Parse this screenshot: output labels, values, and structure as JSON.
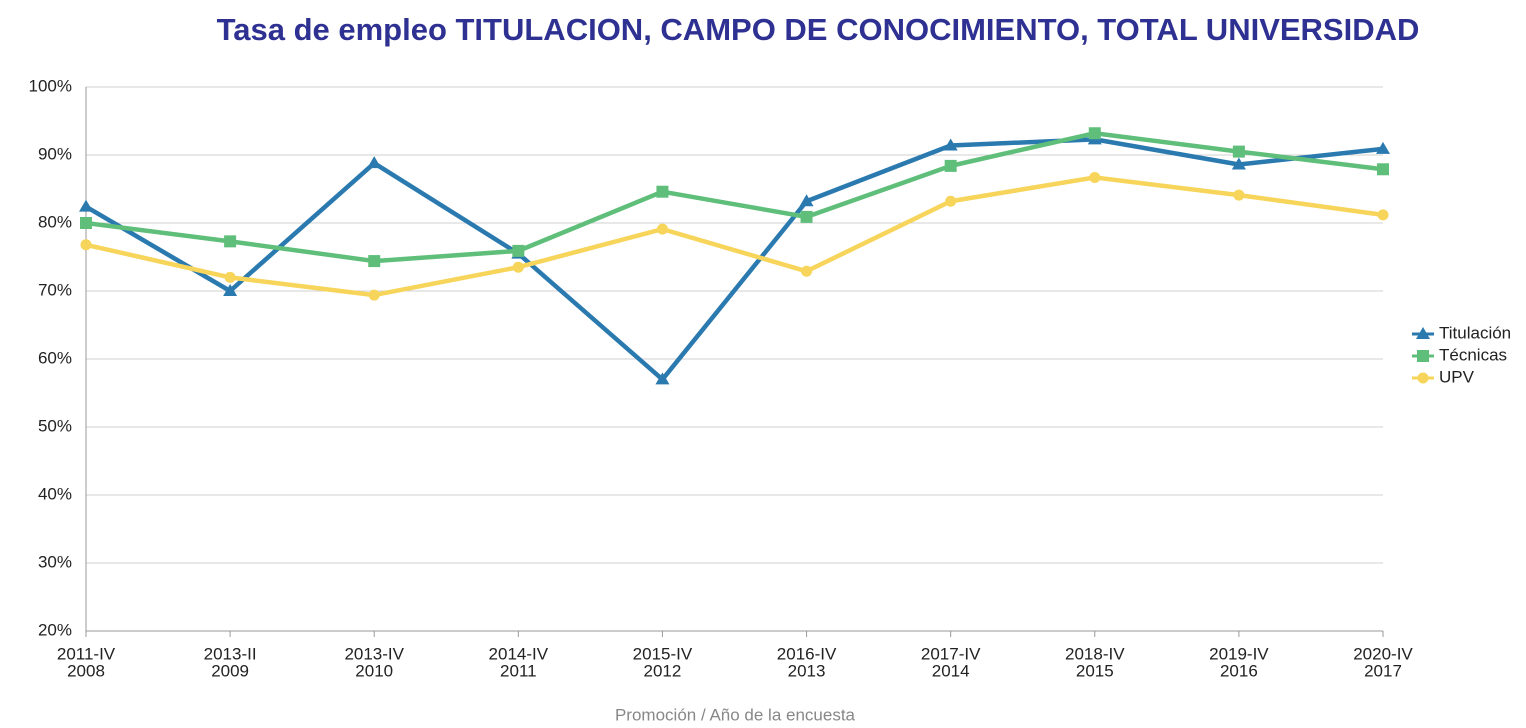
{
  "chart_data": {
    "type": "line",
    "title": "Tasa de empleo TITULACION, CAMPO DE CONOCIMIENTO, TOTAL UNIVERSIDAD",
    "x_label": "Promoción / Año de la encuesta",
    "categories": [
      [
        "2011-IV",
        "2008"
      ],
      [
        "2013-II",
        "2009"
      ],
      [
        "2013-IV",
        "2010"
      ],
      [
        "2014-IV",
        "2011"
      ],
      [
        "2015-IV",
        "2012"
      ],
      [
        "2016-IV",
        "2013"
      ],
      [
        "2017-IV",
        "2014"
      ],
      [
        "2018-IV",
        "2015"
      ],
      [
        "2019-IV",
        "2016"
      ],
      [
        "2020-IV",
        "2017"
      ]
    ],
    "series": [
      {
        "name": "Titulación",
        "color": "#2a7ab0",
        "marker": "triangle",
        "values": [
          82.4,
          70,
          88.8,
          75.5,
          57,
          83.2,
          91.4,
          92.3,
          88.6,
          90.9
        ]
      },
      {
        "name": "Técnicas",
        "color": "#5fbf7a",
        "marker": "square",
        "values": [
          80,
          77.3,
          74.4,
          75.9,
          84.6,
          80.9,
          88.4,
          93.2,
          90.5,
          87.9
        ]
      },
      {
        "name": "UPV",
        "color": "#f7d45a",
        "marker": "circle",
        "values": [
          76.8,
          72,
          69.4,
          73.5,
          79.1,
          72.9,
          83.2,
          86.7,
          84.1,
          81.2
        ]
      }
    ],
    "ylim": [
      20,
      100
    ],
    "yticks": [
      {
        "value": 20,
        "label": "20%"
      },
      {
        "value": 30,
        "label": "30%"
      },
      {
        "value": 40,
        "label": "40%"
      },
      {
        "value": 50,
        "label": "50%"
      },
      {
        "value": 60,
        "label": "60%"
      },
      {
        "value": 70,
        "label": "70%"
      },
      {
        "value": 80,
        "label": "80%"
      },
      {
        "value": 90,
        "label": "90%"
      },
      {
        "value": 100,
        "label": "100%"
      }
    ],
    "grid": true,
    "legend": "right"
  }
}
